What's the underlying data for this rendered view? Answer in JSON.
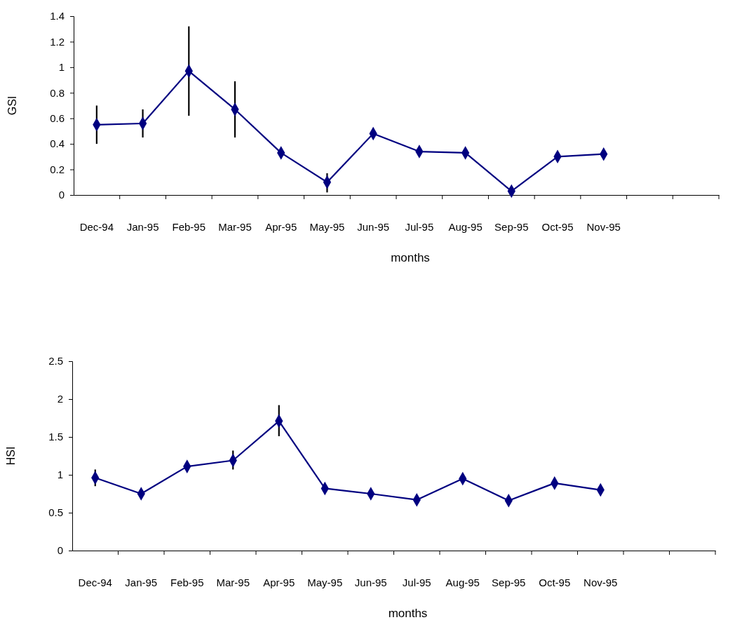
{
  "chart_data": [
    {
      "type": "line",
      "xlabel": "months",
      "ylabel": "GSI",
      "categories": [
        "Dec-94",
        "Jan-95",
        "Feb-95",
        "Mar-95",
        "Apr-95",
        "May-95",
        "Jun-95",
        "Jul-95",
        "Aug-95",
        "Sep-95",
        "Oct-95",
        "Nov-95",
        null,
        null
      ],
      "series": [
        {
          "color": "#000080",
          "values": [
            0.55,
            0.56,
            0.97,
            0.67,
            0.33,
            0.1,
            0.48,
            0.34,
            0.33,
            0.03,
            0.3,
            0.32,
            null,
            null
          ],
          "errors": [
            [
              0.4,
              0.7
            ],
            [
              0.45,
              0.67
            ],
            [
              0.62,
              1.32
            ],
            [
              0.45,
              0.89
            ],
            null,
            [
              0.02,
              0.17
            ],
            null,
            null,
            null,
            null,
            null,
            null,
            null,
            null
          ]
        }
      ],
      "ylim": [
        0,
        1.4
      ],
      "yticks": [
        0,
        0.2,
        0.4,
        0.6,
        0.8,
        1,
        1.2,
        1.4
      ],
      "grid": false,
      "marker": "diamond",
      "line_style": "solid"
    },
    {
      "type": "line",
      "xlabel": "months",
      "ylabel": "HSI",
      "categories": [
        "Dec-94",
        "Jan-95",
        "Feb-95",
        "Mar-95",
        "Apr-95",
        "May-95",
        "Jun-95",
        "Jul-95",
        "Aug-95",
        "Sep-95",
        "Oct-95",
        "Nov-95",
        null,
        null
      ],
      "series": [
        {
          "color": "#000080",
          "values": [
            0.96,
            0.75,
            1.11,
            1.19,
            1.71,
            0.82,
            0.75,
            0.67,
            0.95,
            0.66,
            0.89,
            0.8,
            null,
            null
          ],
          "errors": [
            [
              0.85,
              1.07
            ],
            null,
            null,
            [
              1.07,
              1.32
            ],
            [
              1.51,
              1.92
            ],
            null,
            null,
            null,
            null,
            null,
            null,
            null,
            null,
            null
          ]
        }
      ],
      "ylim": [
        0,
        2.5
      ],
      "yticks": [
        0,
        0.5,
        1,
        1.5,
        2,
        2.5
      ],
      "grid": false,
      "marker": "diamond",
      "line_style": "solid"
    }
  ]
}
